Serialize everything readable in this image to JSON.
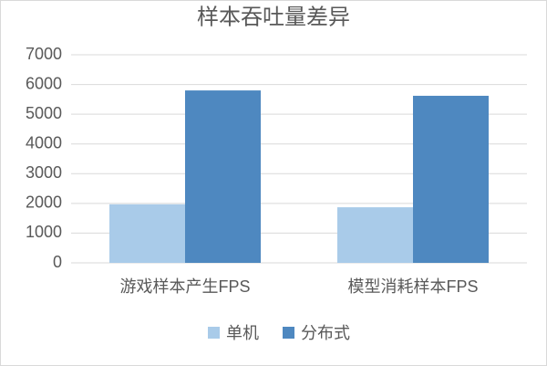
{
  "chart_data": {
    "type": "bar",
    "title": "样本吞吐量差异",
    "categories": [
      "游戏样本产生FPS",
      "模型消耗样本FPS"
    ],
    "series": [
      {
        "name": "单机",
        "color": "#a9cbe9",
        "values": [
          1970,
          1870
        ]
      },
      {
        "name": "分布式",
        "color": "#4e88c0",
        "values": [
          5800,
          5620
        ]
      }
    ],
    "ylim": [
      0,
      7000
    ],
    "yticks": [
      0,
      1000,
      2000,
      3000,
      4000,
      5000,
      6000,
      7000
    ],
    "grid": true,
    "legend": "bottom"
  }
}
